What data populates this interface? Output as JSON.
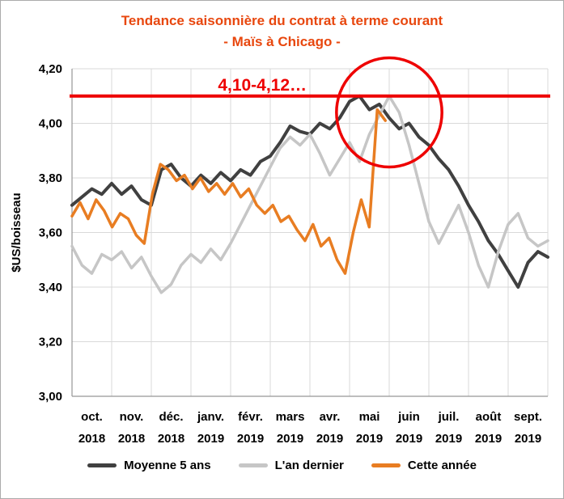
{
  "title": {
    "line1": "Tendance saisonnière du contrat à terme courant",
    "line2": "- Maïs à Chicago -",
    "color": "#e8470e"
  },
  "chart_data": {
    "type": "line",
    "title": "Tendance saisonnière du contrat à terme courant - Maïs à Chicago -",
    "xlabel": "",
    "ylabel": "$US/boisseau",
    "ylim": [
      3.0,
      4.2
    ],
    "grid": true,
    "legend_position": "bottom",
    "x_unit": "months since start of oct. 2018 (category axis oct. 2018 - sept. 2019)",
    "yticks": [
      {
        "value": 4.2,
        "label": "4,20"
      },
      {
        "value": 4.0,
        "label": "4,00"
      },
      {
        "value": 3.8,
        "label": "3,80"
      },
      {
        "value": 3.6,
        "label": "3,60"
      },
      {
        "value": 3.4,
        "label": "3,40"
      },
      {
        "value": 3.2,
        "label": "3,20"
      },
      {
        "value": 3.0,
        "label": "3,00"
      }
    ],
    "xticks": [
      {
        "month": "oct.",
        "year": "2018"
      },
      {
        "month": "nov.",
        "year": "2018"
      },
      {
        "month": "déc.",
        "year": "2018"
      },
      {
        "month": "janv.",
        "year": "2019"
      },
      {
        "month": "févr.",
        "year": "2019"
      },
      {
        "month": "mars",
        "year": "2019"
      },
      {
        "month": "avr.",
        "year": "2019"
      },
      {
        "month": "mai",
        "year": "2019"
      },
      {
        "month": "juin",
        "year": "2019"
      },
      {
        "month": "juil.",
        "year": "2019"
      },
      {
        "month": "août",
        "year": "2019"
      },
      {
        "month": "sept.",
        "year": "2019"
      }
    ],
    "series": [
      {
        "name": "Moyenne 5 ans",
        "color": "#404040",
        "width": 4,
        "x_start": 0,
        "x_step": 0.25,
        "values": [
          3.7,
          3.73,
          3.76,
          3.74,
          3.78,
          3.74,
          3.77,
          3.72,
          3.7,
          3.83,
          3.85,
          3.8,
          3.77,
          3.81,
          3.78,
          3.82,
          3.79,
          3.83,
          3.81,
          3.86,
          3.88,
          3.93,
          3.99,
          3.97,
          3.96,
          4.0,
          3.98,
          4.02,
          4.08,
          4.1,
          4.05,
          4.07,
          4.02,
          3.98,
          4.0,
          3.95,
          3.92,
          3.87,
          3.83,
          3.77,
          3.7,
          3.64,
          3.57,
          3.52,
          3.46,
          3.4,
          3.49,
          3.53,
          3.51
        ]
      },
      {
        "name": "L'an dernier",
        "color": "#c6c6c6",
        "width": 3.5,
        "x_start": 0,
        "x_step": 0.25,
        "values": [
          3.55,
          3.48,
          3.45,
          3.52,
          3.5,
          3.53,
          3.47,
          3.51,
          3.44,
          3.38,
          3.41,
          3.48,
          3.52,
          3.49,
          3.54,
          3.5,
          3.56,
          3.63,
          3.7,
          3.77,
          3.84,
          3.91,
          3.95,
          3.92,
          3.96,
          3.89,
          3.81,
          3.87,
          3.93,
          3.86,
          3.96,
          4.03,
          4.1,
          4.04,
          3.92,
          3.78,
          3.64,
          3.56,
          3.63,
          3.7,
          3.6,
          3.48,
          3.4,
          3.53,
          3.63,
          3.67,
          3.58,
          3.55,
          3.57
        ]
      },
      {
        "name": "Cette année",
        "color": "#e87d22",
        "width": 3.5,
        "x_start": 0,
        "x_step": 0.2026,
        "values": [
          3.66,
          3.71,
          3.65,
          3.72,
          3.68,
          3.62,
          3.67,
          3.65,
          3.59,
          3.56,
          3.74,
          3.85,
          3.83,
          3.79,
          3.81,
          3.76,
          3.8,
          3.75,
          3.78,
          3.74,
          3.78,
          3.73,
          3.76,
          3.7,
          3.67,
          3.7,
          3.64,
          3.66,
          3.61,
          3.57,
          3.63,
          3.55,
          3.58,
          3.5,
          3.45,
          3.6,
          3.72,
          3.62,
          4.05,
          4.01
        ]
      }
    ],
    "annotations": {
      "ref_line": {
        "value": 4.1,
        "color": "#ee0000",
        "label": "4,10-4,12…",
        "label_pos": {
          "month": 4.8,
          "value": 4.12
        }
      },
      "ellipse": {
        "center_month": 8.0,
        "center_value": 4.04,
        "rx_months": 1.33,
        "ry_value": 0.2,
        "color": "#ee0000"
      }
    }
  }
}
